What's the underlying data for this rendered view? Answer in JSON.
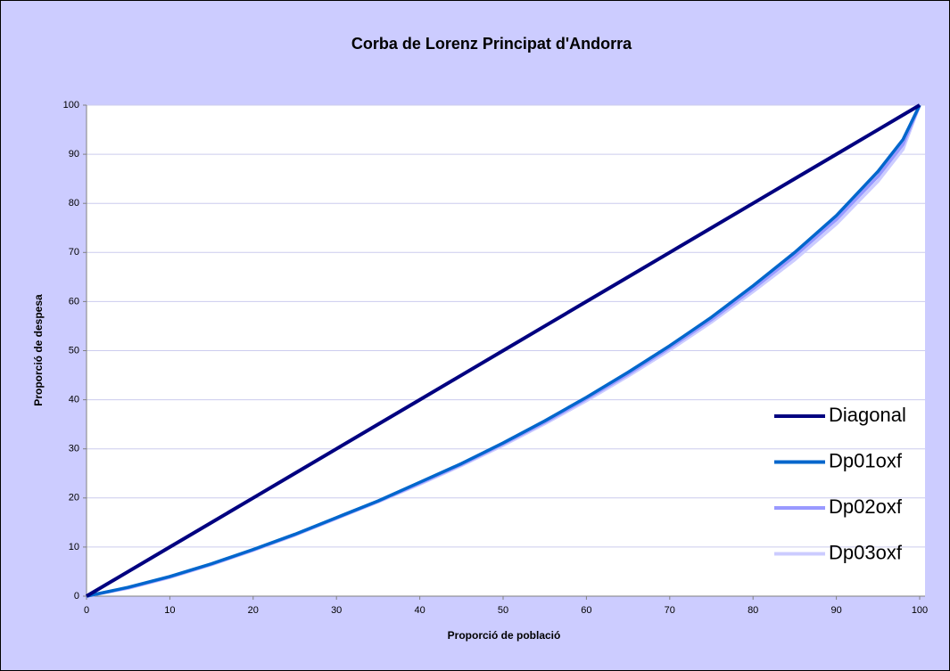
{
  "chart_data": {
    "type": "line",
    "title": "Corba de Lorenz Principat d'Andorra",
    "xlabel": "Proporció de població",
    "ylabel": "Proporció de despesa",
    "x": [
      0,
      5,
      10,
      15,
      20,
      25,
      30,
      35,
      40,
      45,
      50,
      55,
      60,
      65,
      70,
      75,
      80,
      85,
      90,
      95,
      98,
      100
    ],
    "series": [
      {
        "name": "Diagonal",
        "color": "#000080",
        "values": [
          0,
          5,
          10,
          15,
          20,
          25,
          30,
          35,
          40,
          45,
          50,
          55,
          60,
          65,
          70,
          75,
          80,
          85,
          90,
          95,
          98,
          100
        ]
      },
      {
        "name": "Dp01oxf",
        "color": "#0066cc",
        "values": [
          0,
          1.8,
          4,
          6.6,
          9.5,
          12.6,
          16,
          19.4,
          23.2,
          27,
          31.2,
          35.7,
          40.5,
          45.6,
          51,
          56.8,
          63.2,
          70,
          77.5,
          86.5,
          93,
          100
        ]
      },
      {
        "name": "Dp02oxf",
        "color": "#9999ff",
        "values": [
          0,
          1.7,
          3.9,
          6.5,
          9.4,
          12.5,
          15.9,
          19.3,
          23,
          26.8,
          31,
          35.4,
          40.2,
          45.2,
          50.6,
          56.3,
          62.6,
          69.3,
          76.7,
          85.5,
          92,
          100
        ]
      },
      {
        "name": "Dp03oxf",
        "color": "#ccccff",
        "values": [
          0,
          1.6,
          3.8,
          6.4,
          9.3,
          12.4,
          15.8,
          19.2,
          22.8,
          26.6,
          30.7,
          35.1,
          39.8,
          44.8,
          50.1,
          55.8,
          62,
          68.5,
          75.8,
          84.5,
          91,
          100
        ]
      }
    ],
    "xlim": [
      0,
      100
    ],
    "ylim": [
      0,
      100
    ],
    "xticks": [
      0,
      10,
      20,
      30,
      40,
      50,
      60,
      70,
      80,
      90,
      100
    ],
    "yticks": [
      0,
      10,
      20,
      30,
      40,
      50,
      60,
      70,
      80,
      90,
      100
    ],
    "grid": true,
    "legend": "right"
  }
}
